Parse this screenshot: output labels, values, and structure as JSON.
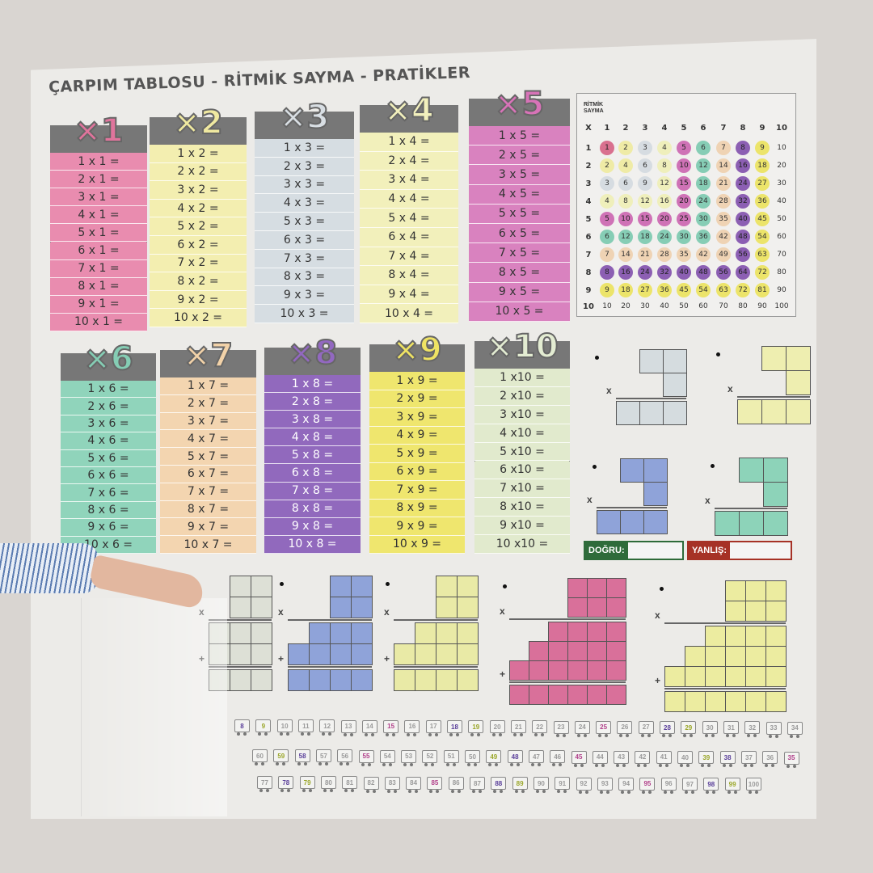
{
  "title": "ÇARPIM TABLOSU - RİTMİK SAYMA - PRATİKLER",
  "tables": [
    {
      "label": "×1",
      "header_color": "#e0749c",
      "row_color": "#e98caf",
      "rows": [
        "1 x 1 =",
        "2 x 1 =",
        "3 x 1 =",
        "4 x 1 =",
        "5 x 1 =",
        "6 x 1 =",
        "7 x 1 =",
        "8 x 1 =",
        "9 x 1 =",
        "10 x 1 ="
      ]
    },
    {
      "label": "×2",
      "header_color": "#f0e9a0",
      "row_color": "#f3eeb0",
      "rows": [
        "1 x 2 =",
        "2 x 2 =",
        "3 x 2 =",
        "4 x 2 =",
        "5 x 2 =",
        "6 x 2 =",
        "7 x 2 =",
        "8 x 2 =",
        "9 x 2 =",
        "10 x 2 ="
      ]
    },
    {
      "label": "×3",
      "header_color": "#d8dee3",
      "row_color": "#d6dde2",
      "rows": [
        "1 x 3 =",
        "2 x 3 =",
        "3 x 3 =",
        "4 x 3 =",
        "5 x 3 =",
        "6 x 3 =",
        "7 x 3 =",
        "8 x 3 =",
        "9 x 3 =",
        "10 x 3 ="
      ]
    },
    {
      "label": "×4",
      "header_color": "#f2f0bd",
      "row_color": "#f2f0bb",
      "rows": [
        "1 x 4 =",
        "2 x 4 =",
        "3 x 4 =",
        "4 x 4 =",
        "5 x 4 =",
        "6 x 4 =",
        "7 x 4 =",
        "8 x 4 =",
        "9 x 4 =",
        "10 x 4 ="
      ]
    },
    {
      "label": "×5",
      "header_color": "#d873b8",
      "row_color": "#d982bf",
      "rows": [
        "1 x 5 =",
        "2 x 5 =",
        "3 x 5 =",
        "4 x 5 =",
        "5 x 5 =",
        "6 x 5 =",
        "7 x 5 =",
        "8 x 5 =",
        "9 x 5 =",
        "10 x 5 ="
      ]
    },
    {
      "label": "×6",
      "header_color": "#85cdb4",
      "row_color": "#90d4bb",
      "rows": [
        "1 x 6 =",
        "2 x 6 =",
        "3 x 6 =",
        "4 x 6 =",
        "5 x 6 =",
        "6 x 6 =",
        "7 x 6 =",
        "8 x 6 =",
        "9 x 6 =",
        "10 x 6 ="
      ]
    },
    {
      "label": "×7",
      "header_color": "#f2d2a8",
      "row_color": "#f3d5b0",
      "rows": [
        "1 x 7 =",
        "2 x 7 =",
        "3 x 7 =",
        "4 x 7 =",
        "5 x 7 =",
        "6 x 7 =",
        "7 x 7 =",
        "8 x 7 =",
        "9 x 7 =",
        "10 x 7 ="
      ]
    },
    {
      "label": "×8",
      "header_color": "#9268c0",
      "row_color": "#9169bd",
      "rows": [
        "1 x 8 =",
        "2 x 8 =",
        "3 x 8 =",
        "4 x 8 =",
        "5 x 8 =",
        "6 x 8 =",
        "7 x 8 =",
        "8 x 8 =",
        "9 x 8 =",
        "10 x 8 ="
      ]
    },
    {
      "label": "×9",
      "header_color": "#efe363",
      "row_color": "#efe66e",
      "rows": [
        "1 x 9 =",
        "2 x 9 =",
        "3 x 9 =",
        "4 x 9 =",
        "5 x 9 =",
        "6 x 9 =",
        "7 x 9 =",
        "8 x 9 =",
        "9 x 9 =",
        "10 x 9 ="
      ]
    },
    {
      "label": "×10",
      "header_color": "#e3ecd2",
      "row_color": "#e1eacd",
      "rows": [
        "1 x10 =",
        "2 x10 =",
        "3 x10 =",
        "4 x10 =",
        "5 x10 =",
        "6 x10 =",
        "7 x10 =",
        "8 x10 =",
        "9 x10 =",
        "10 x10 ="
      ]
    }
  ],
  "ritmik": {
    "label_line1": "RİTMİK",
    "label_line2": "SAYMA",
    "corner": "X",
    "headers": [
      "1",
      "2",
      "3",
      "4",
      "5",
      "6",
      "7",
      "8",
      "9",
      "10"
    ],
    "colors": {
      "1": "#d9708f",
      "2": "#efeba6",
      "3": "#d6dce1",
      "4": "#efefbb",
      "5": "#cf72b6",
      "6": "#86cdb5",
      "7": "#efd3b4",
      "8": "#8c5fb3",
      "9": "#ece46a"
    },
    "rows": [
      [
        "1",
        "2",
        "3",
        "4",
        "5",
        "6",
        "7",
        "8",
        "9",
        "10"
      ],
      [
        "2",
        "4",
        "6",
        "8",
        "10",
        "12",
        "14",
        "16",
        "18",
        "20"
      ],
      [
        "3",
        "6",
        "9",
        "12",
        "15",
        "18",
        "21",
        "24",
        "27",
        "30"
      ],
      [
        "4",
        "8",
        "12",
        "16",
        "20",
        "24",
        "28",
        "32",
        "36",
        "40"
      ],
      [
        "5",
        "10",
        "15",
        "20",
        "25",
        "30",
        "35",
        "40",
        "45",
        "50"
      ],
      [
        "6",
        "12",
        "18",
        "24",
        "30",
        "36",
        "42",
        "48",
        "54",
        "60"
      ],
      [
        "7",
        "14",
        "21",
        "28",
        "35",
        "42",
        "49",
        "56",
        "63",
        "70"
      ],
      [
        "8",
        "16",
        "24",
        "32",
        "40",
        "48",
        "56",
        "64",
        "72",
        "80"
      ],
      [
        "9",
        "18",
        "27",
        "36",
        "45",
        "54",
        "63",
        "72",
        "81",
        "90"
      ],
      [
        "10",
        "20",
        "30",
        "40",
        "50",
        "60",
        "70",
        "80",
        "90",
        "100"
      ]
    ]
  },
  "practice": {
    "times_symbol": "x",
    "plus_symbol": "+",
    "colors": [
      "#d5dcdf",
      "#eeeeb0",
      "#8fa3d9",
      "#8dd3b9",
      "#dde0d6",
      "#8fa3d9",
      "#e9eaa6",
      "#d9709a",
      "#ececa0"
    ]
  },
  "score": {
    "correct_label": "DOĞRU:",
    "wrong_label": "YANLIŞ:",
    "correct_color": "#2e6b3a",
    "wrong_color": "#a63226"
  },
  "train": {
    "row1": [
      "8",
      "9",
      "10",
      "11",
      "12",
      "13",
      "14",
      "15",
      "16",
      "17",
      "18",
      "19",
      "20",
      "21",
      "22",
      "23",
      "24",
      "25",
      "26",
      "27",
      "28",
      "29",
      "30",
      "31",
      "32",
      "33",
      "34"
    ],
    "row2": [
      "60",
      "59",
      "58",
      "57",
      "56",
      "55",
      "54",
      "53",
      "52",
      "51",
      "50",
      "49",
      "48",
      "47",
      "46",
      "45",
      "44",
      "43",
      "42",
      "41",
      "40",
      "39",
      "38",
      "37",
      "36",
      "35"
    ],
    "row3": [
      "77",
      "78",
      "79",
      "80",
      "81",
      "82",
      "83",
      "84",
      "85",
      "86",
      "87",
      "88",
      "89",
      "90",
      "91",
      "92",
      "93",
      "94",
      "95",
      "96",
      "97",
      "98",
      "99",
      "100"
    ]
  }
}
